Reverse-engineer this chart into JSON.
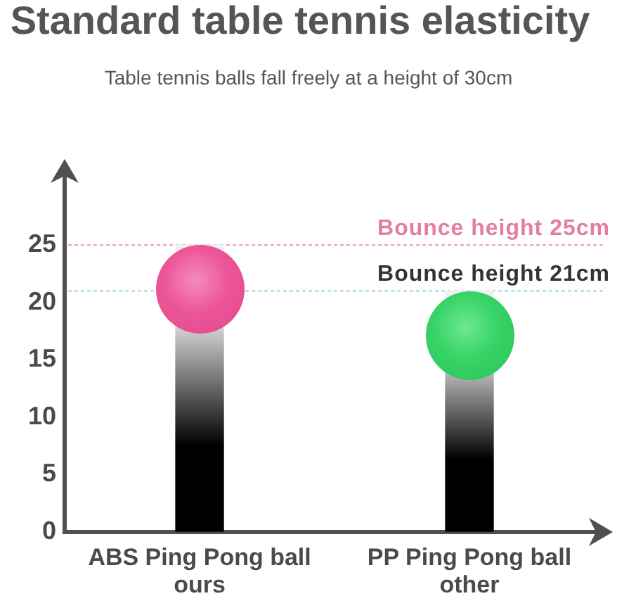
{
  "chart_data": {
    "type": "bar",
    "title": "Standard table tennis elasticity",
    "subtitle": "Table tennis balls fall freely at a height of 30cm",
    "categories": [
      "ABS Ping Pong ball\nours",
      "PP Ping Pong ball\nother"
    ],
    "values": [
      25,
      21
    ],
    "color": "#000000",
    "ylim": [
      0,
      32
    ],
    "yticks": [
      0,
      5,
      10,
      15,
      20,
      25
    ],
    "ref_lines": [
      {
        "axis": "y",
        "value": 25,
        "label": "Bounce height 25cm",
        "color": "#e9a3bd",
        "line_style": "dotted"
      },
      {
        "axis": "y",
        "value": 21,
        "label": "Bounce height 21cm",
        "color": "#a4d8e0",
        "line_style": "dotted"
      }
    ]
  }
}
